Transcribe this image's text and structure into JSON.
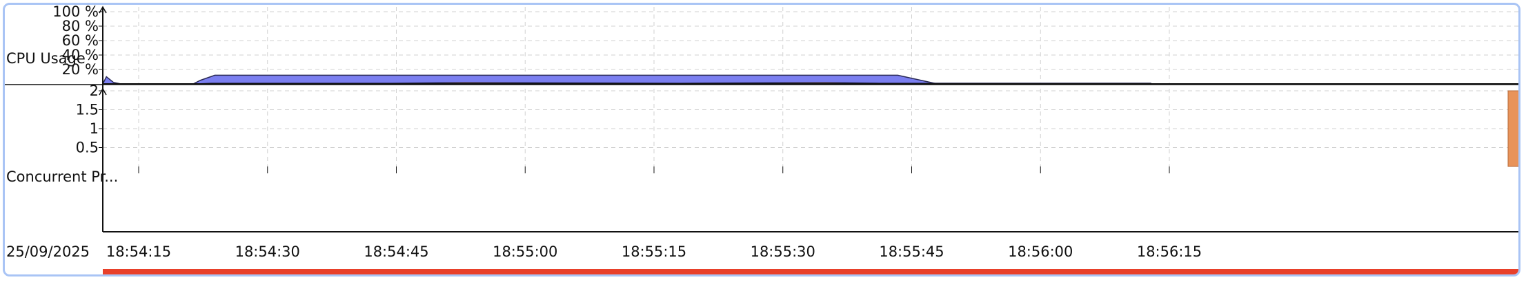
{
  "panel": {
    "date": "25/09/2025"
  },
  "chart_data": [
    {
      "type": "area",
      "ylabel": "CPU Usage",
      "ylim": [
        0,
        100
      ],
      "y_ticks": [
        "100 %",
        "80 %",
        "60 %",
        "40 %",
        "20 %"
      ],
      "y_tick_values": [
        100,
        80,
        60,
        40,
        20
      ],
      "grid": true,
      "series": [
        {
          "color": "#7b7ff0",
          "x": [
            0,
            1,
            3,
            5,
            23,
            25,
            27,
            31,
            35,
            220,
            231,
            234
          ],
          "y": [
            0,
            10,
            2,
            0,
            0,
            0,
            5,
            12,
            12,
            12,
            0,
            0
          ]
        },
        {
          "color": "#f0a35a",
          "x": [
            26,
            30,
            80,
            100,
            160,
            200,
            215,
            265,
            290
          ],
          "y": [
            0,
            1,
            1,
            2,
            1,
            2,
            1,
            1,
            1
          ]
        }
      ]
    },
    {
      "type": "bar",
      "ylabel": "Concurrent Pr...",
      "ylim": [
        0,
        2
      ],
      "y_ticks": [
        "2",
        "1.5",
        "1",
        "0.5"
      ],
      "y_tick_values": [
        2,
        1.5,
        1,
        0.5
      ],
      "grid": true,
      "bar_color": "#e8935a",
      "bars": [
        {
          "x_end": 274,
          "value": 2
        }
      ],
      "x_ticks": [
        "18:54:15",
        "18:54:30",
        "18:54:45",
        "18:55:00",
        "18:55:15",
        "18:55:30",
        "18:55:45",
        "18:56:00",
        "18:56:15"
      ],
      "x_tick_values": [
        10,
        25,
        40,
        55,
        70,
        85,
        100,
        115,
        130
      ],
      "timeline_color": "#e8402a"
    }
  ]
}
